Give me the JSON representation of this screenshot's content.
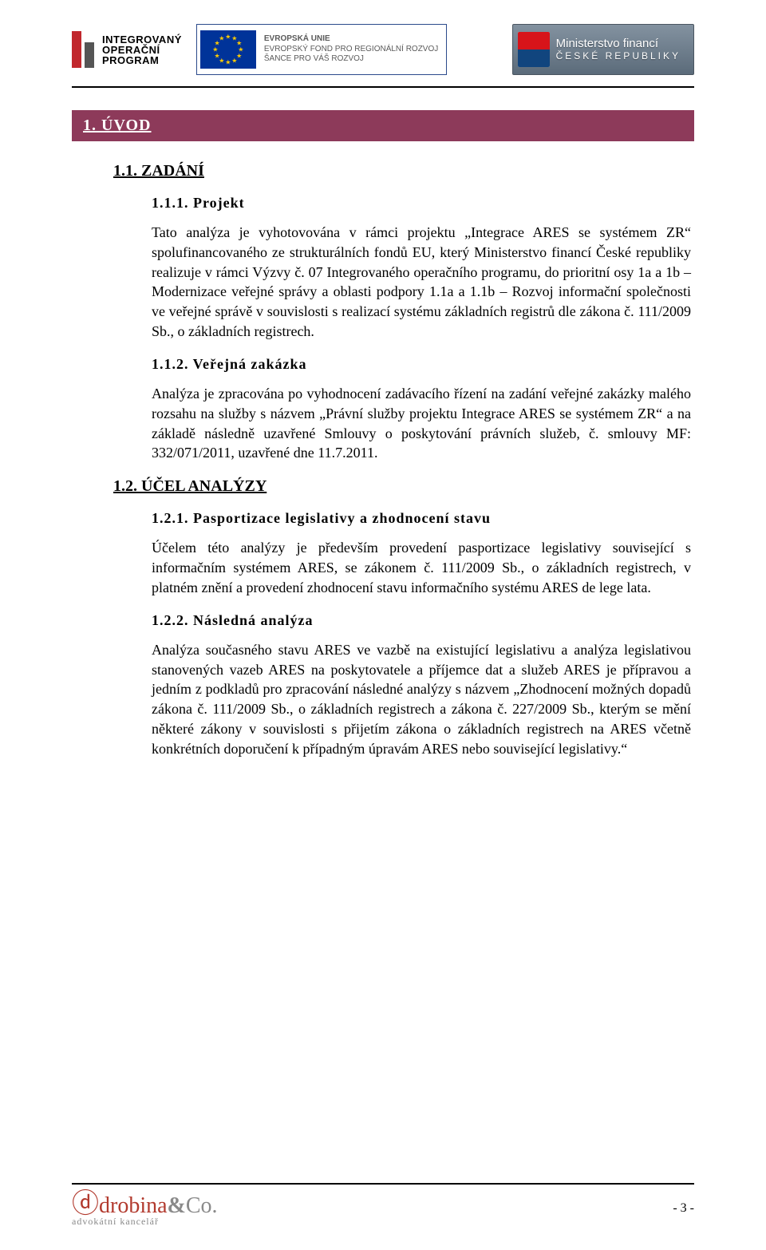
{
  "header": {
    "iop": {
      "line1": "INTEGROVANÝ",
      "line2": "OPERAČNÍ",
      "line3": "PROGRAM"
    },
    "eu": {
      "line1": "EVROPSKÁ UNIE",
      "line2": "EVROPSKÝ FOND PRO REGIONÁLNÍ ROZVOJ",
      "line3": "ŠANCE PRO VÁŠ ROZVOJ",
      "flag_bg": "#003399",
      "star_color": "#ffcc00"
    },
    "mf": {
      "line1": "Ministerstvo financí",
      "line2": "ČESKÉ REPUBLIKY"
    }
  },
  "section_bar": "1.    ÚVOD",
  "s11": {
    "title": "1.1.    ZADÁNÍ",
    "s111": {
      "title": "1.1.1.  Projekt",
      "para": "Tato analýza je vyhotovována v rámci projektu „Integrace ARES se systémem ZR“ spolufinancovaného ze strukturálních fondů EU, který Ministerstvo financí České republiky realizuje v rámci Výzvy č. 07 Integrovaného operačního programu, do prioritní osy 1a a 1b – Modernizace veřejné správy a oblasti podpory 1.1a a 1.1b – Rozvoj informační společnosti ve veřejné správě v souvislosti s realizací systému základních registrů dle zákona č. 111/2009 Sb., o základních registrech."
    },
    "s112": {
      "title": "1.1.2.  Veřejná zakázka",
      "para": "Analýza je zpracována po vyhodnocení zadávacího řízení na zadání veřejné zakázky malého rozsahu na služby s názvem „Právní služby projektu Integrace ARES se systémem ZR“ a na základě následně uzavřené Smlouvy o poskytování právních služeb, č. smlouvy MF: 332/071/2011, uzavřené dne 11.7.2011."
    }
  },
  "s12": {
    "title": "1.2.    ÚČEL ANALÝZY",
    "s121": {
      "title": "1.2.1.  Pasportizace legislativy a zhodnocení stavu",
      "para": "Účelem této analýzy je především provedení pasportizace legislativy související s informačním systémem ARES, se zákonem č. 111/2009 Sb., o základních registrech, v platném znění a provedení zhodnocení stavu informačního systému ARES de lege lata."
    },
    "s122": {
      "title": "1.2.2.  Následná analýza",
      "para": "Analýza současného stavu ARES ve vazbě na existující legislativu a analýza legislativou stanovených vazeb ARES na poskytovatele a příjemce dat a služeb ARES je přípravou a jedním z podkladů pro zpracování následné analýzy s názvem „Zhodnocení možných dopadů zákona č. 111/2009 Sb., o základních registrech a zákona č. 227/2009 Sb., kterým se mění některé zákony v souvislosti s přijetím zákona o základních registrech na ARES včetně konkrétních doporučení k případným úpravám ARES nebo související legislativy.“"
    }
  },
  "footer": {
    "brand_main": "drobina",
    "brand_amp": "&",
    "brand_co": "Co.",
    "brand_sub": "advokátní kancelář",
    "page_number": "- 3 -"
  },
  "colors": {
    "section_bar_bg": "#8d3a5a",
    "eu_border": "#2b4a8b",
    "bar_red": "#c1272d",
    "bar_grey": "#555555",
    "mf_bg_top": "#8392a0",
    "mf_bg_bottom": "#5b6b7a",
    "brand_red": "#b23a2e"
  }
}
